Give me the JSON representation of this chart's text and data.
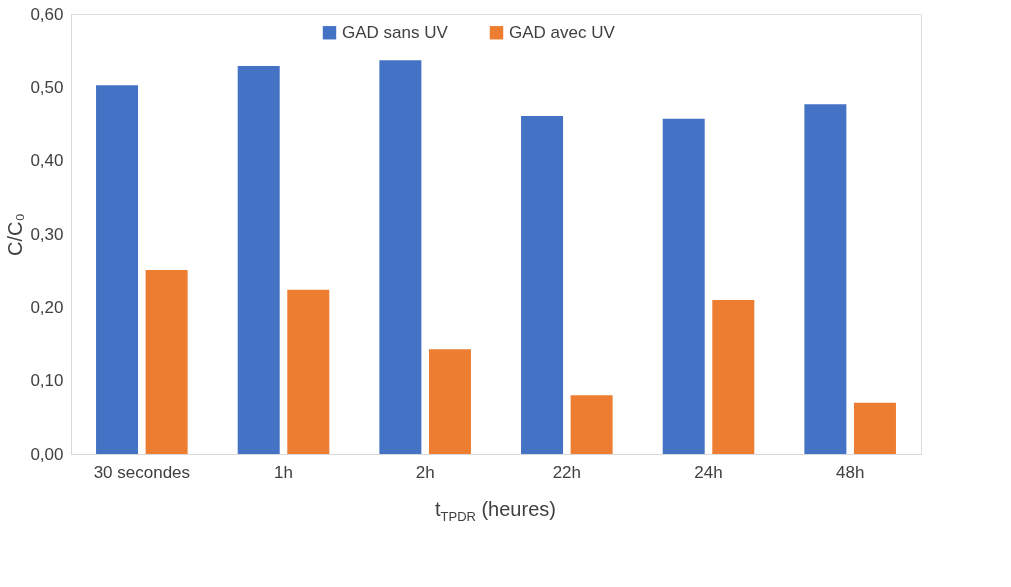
{
  "chart_data": {
    "type": "bar",
    "xlabel": "t$_{TPDR}$ (heures)",
    "ylabel": "C/C₀",
    "categories": [
      "30 secondes",
      "1h",
      "2h",
      "22h",
      "24h",
      "48h"
    ],
    "series": [
      {
        "name": "GAD sans UV",
        "color": "#4472c4",
        "values": [
          0.503,
          0.529,
          0.537,
          0.461,
          0.457,
          0.477
        ]
      },
      {
        "name": "GAD avec UV",
        "color": "#ed7d31",
        "values": [
          0.251,
          0.224,
          0.143,
          0.08,
          0.21,
          0.07
        ]
      }
    ],
    "ylim": [
      0,
      0.6
    ],
    "yticks": [
      {
        "value": 0,
        "label": "0,00"
      },
      {
        "value": 0.1,
        "label": "0,10"
      },
      {
        "value": 0.2,
        "label": "0,20"
      },
      {
        "value": 0.3,
        "label": "0,30"
      },
      {
        "value": 0.4,
        "label": "0,40"
      },
      {
        "value": 0.5,
        "label": "0,50"
      },
      {
        "value": 0.6,
        "label": "0,60"
      }
    ],
    "grid": false,
    "legend": "top"
  }
}
